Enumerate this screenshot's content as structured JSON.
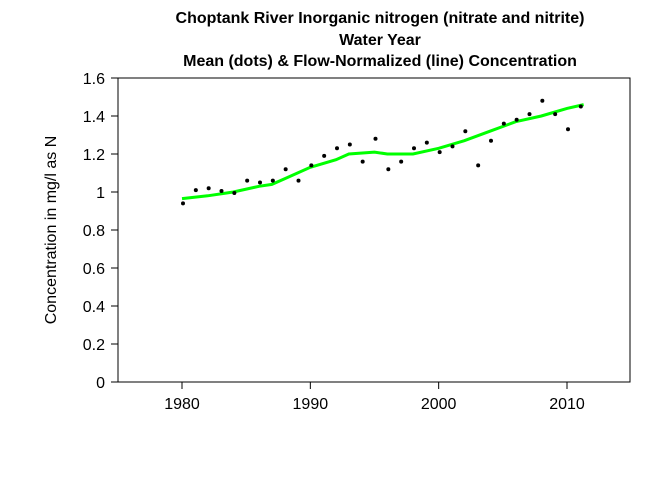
{
  "chart_data": {
    "type": "scatter+line",
    "title": [
      "Choptank River   Inorganic nitrogen (nitrate and nitrite)",
      "Water Year",
      "Mean (dots) & Flow-Normalized (line) Concentration"
    ],
    "xlabel": "",
    "ylabel": "Concentration in mg/l as N",
    "xlim": [
      1975,
      2015
    ],
    "ylim": [
      0,
      1.6
    ],
    "xticks": [
      1980,
      1990,
      2000,
      2010
    ],
    "yticks": [
      "0",
      "0.2",
      "0.4",
      "0.6",
      "0.8",
      "1",
      "1.2",
      "1.4",
      "1.6"
    ],
    "grid": false,
    "line_color": "#00ff00",
    "dot_color": "#000000",
    "mean_points": {
      "x": [
        1980,
        1981,
        1982,
        1983,
        1984,
        1985,
        1986,
        1987,
        1988,
        1989,
        1990,
        1991,
        1992,
        1993,
        1994,
        1995,
        1996,
        1997,
        1998,
        1999,
        2000,
        2001,
        2002,
        2003,
        2004,
        2005,
        2006,
        2007,
        2008,
        2009,
        2010,
        2011
      ],
      "y": [
        0.94,
        1.01,
        1.02,
        1.005,
        0.995,
        1.06,
        1.05,
        1.06,
        1.12,
        1.06,
        1.14,
        1.19,
        1.23,
        1.25,
        1.16,
        1.28,
        1.12,
        1.16,
        1.23,
        1.26,
        1.21,
        1.24,
        1.32,
        1.14,
        1.27,
        1.36,
        1.38,
        1.41,
        1.48,
        1.41,
        1.33,
        1.45
      ]
    },
    "flow_normalized": {
      "x": [
        1980,
        1982,
        1984,
        1986,
        1987,
        1988,
        1990,
        1992,
        1993,
        1995,
        1996,
        1998,
        2000,
        2002,
        2004,
        2006,
        2008,
        2010,
        2011.3
      ],
      "y": [
        0.965,
        0.98,
        1.0,
        1.03,
        1.04,
        1.07,
        1.13,
        1.17,
        1.2,
        1.21,
        1.2,
        1.2,
        1.23,
        1.27,
        1.32,
        1.37,
        1.4,
        1.44,
        1.46
      ]
    }
  }
}
